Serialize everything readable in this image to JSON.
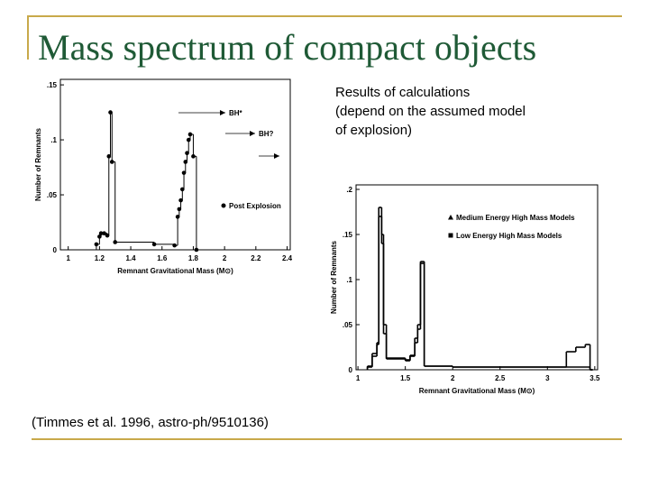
{
  "title": "Mass spectrum of compact objects",
  "note": [
    "Results of calculations",
    "(depend on the assumed model",
    "of explosion)"
  ],
  "citation": "(Timmes et al. 1996, astro-ph/9510136)",
  "chart_data": [
    {
      "type": "step",
      "xlabel": "Remnant Gravitational Mass (M⊙)",
      "ylabel": "Number of Remnants",
      "xlim": [
        0.95,
        2.42
      ],
      "ylim": [
        0,
        0.155
      ],
      "xticks": [
        1,
        1.2,
        1.4,
        1.6,
        1.8,
        2,
        2.2,
        2.4
      ],
      "yticks": [
        0,
        {
          "value": 0.05,
          "label": ".05"
        },
        {
          "value": 0.1,
          "label": ".1"
        },
        {
          "value": 0.15,
          "label": ".15"
        }
      ],
      "annotations": [
        "BH*",
        "BH?"
      ],
      "series": [
        {
          "name": "Post Explosion",
          "color": "#000000",
          "marker": "circle",
          "x": [
            1.18,
            1.2,
            1.21,
            1.23,
            1.25,
            1.26,
            1.27,
            1.28,
            1.3,
            1.55,
            1.68,
            1.7,
            1.71,
            1.72,
            1.73,
            1.74,
            1.75,
            1.76,
            1.77,
            1.78,
            1.8,
            1.82
          ],
          "values": [
            0.005,
            0.012,
            0.015,
            0.015,
            0.013,
            0.085,
            0.125,
            0.08,
            0.007,
            0.005,
            0.004,
            0.03,
            0.037,
            0.045,
            0.055,
            0.07,
            0.08,
            0.088,
            0.1,
            0.105,
            0.085,
            0
          ]
        }
      ]
    },
    {
      "type": "step",
      "xlabel": "Remnant Gravitational Mass (M⊙)",
      "ylabel": "Number of Remnants",
      "xlim": [
        0.98,
        3.53
      ],
      "ylim": [
        0,
        0.205
      ],
      "xticks": [
        1,
        1.5,
        2,
        2.5,
        3,
        3.5
      ],
      "yticks": [
        0,
        {
          "value": 0.05,
          "label": ".05"
        },
        {
          "value": 0.1,
          "label": ".1"
        },
        {
          "value": 0.15,
          "label": ".15"
        },
        {
          "value": 0.2,
          "label": ".2"
        }
      ],
      "series": [
        {
          "name": "Medium Energy High Mass Models",
          "color": "#000000",
          "marker": "triangle",
          "x": [
            1.1,
            1.15,
            1.2,
            1.22,
            1.25,
            1.27,
            1.3,
            1.5,
            1.55,
            1.6,
            1.63,
            1.66,
            1.7,
            2.0,
            2.5,
            3.0,
            3.2,
            3.3,
            3.4,
            3.45
          ],
          "values": [
            0.003,
            0.015,
            0.03,
            0.17,
            0.14,
            0.05,
            0.012,
            0.01,
            0.015,
            0.035,
            0.05,
            0.12,
            0.004,
            0.003,
            0.003,
            0.003,
            0.02,
            0.025,
            0.028,
            0
          ]
        },
        {
          "name": "Low Energy High Mass Models",
          "color": "#000000",
          "marker": "square",
          "x": [
            1.1,
            1.15,
            1.2,
            1.22,
            1.25,
            1.27,
            1.3,
            1.5,
            1.55,
            1.6,
            1.63,
            1.66,
            1.7,
            2.0,
            2.5,
            3.0,
            3.45
          ],
          "values": [
            0.004,
            0.018,
            0.028,
            0.18,
            0.15,
            0.04,
            0.013,
            0.011,
            0.016,
            0.03,
            0.045,
            0.118,
            0.004,
            0.003,
            0.003,
            0.003,
            0
          ]
        }
      ]
    }
  ]
}
